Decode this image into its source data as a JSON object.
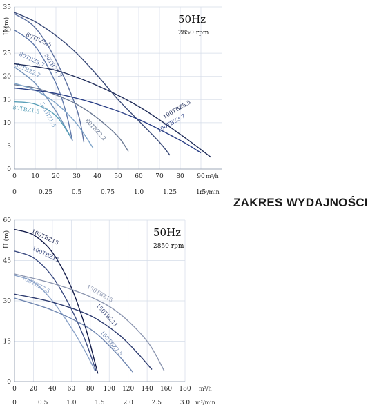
{
  "side_title": "ZAKRES WYDAJNOŚCI",
  "chart_data": [
    {
      "type": "line",
      "title": "50Hz",
      "subtitle": "2850 rpm",
      "ylabel": "H (m)",
      "xlabel": "m³/h",
      "xlabel2": "m³/min",
      "xlim": [
        0,
        100
      ],
      "ylim": [
        0,
        35
      ],
      "x_ticks": [
        0,
        10,
        20,
        30,
        40,
        50,
        60,
        70,
        80,
        90
      ],
      "y_ticks": [
        0,
        5,
        10,
        15,
        20,
        25,
        30,
        35
      ],
      "x2_ticks": [
        "0",
        "0.25",
        "0.5",
        "0.75",
        "1.0",
        "1.25",
        "1.5"
      ],
      "x2_values": [
        0,
        15,
        30,
        45,
        60,
        75,
        90
      ],
      "grid": true,
      "series": [
        {
          "name": "80TBZ5.5",
          "color": "#3a4a78",
          "x": [
            0,
            10,
            20,
            30,
            40,
            50,
            60,
            70,
            75
          ],
          "y": [
            33.8,
            31.8,
            28.8,
            25.0,
            20.2,
            15.0,
            10.4,
            5.8,
            3.0
          ]
        },
        {
          "name": "50TBZ3.7",
          "color": "#5a6e9e",
          "x": [
            0,
            10,
            20,
            30,
            33.5
          ],
          "y": [
            33.5,
            30.5,
            23.5,
            13.0,
            5.8
          ]
        },
        {
          "name": "80TBZ3.7",
          "color": "#5f78aa",
          "x": [
            0,
            10,
            20,
            25,
            28
          ],
          "y": [
            30.0,
            26.5,
            18.5,
            12.0,
            6.0
          ]
        },
        {
          "name": "50TBZ2.2",
          "color": "#6f8fb8",
          "x": [
            0,
            10,
            20,
            28
          ],
          "y": [
            22.0,
            18.5,
            12.5,
            6.2
          ]
        },
        {
          "name": "80TBZ2.2",
          "color": "#6c7a94",
          "x": [
            0,
            10,
            20,
            30,
            40,
            50,
            55
          ],
          "y": [
            18.2,
            17.5,
            16.0,
            14.0,
            11.0,
            7.0,
            3.8
          ]
        },
        {
          "name": "80TBZ1.5",
          "color": "#5aa0b8",
          "x": [
            0,
            10,
            20,
            27
          ],
          "y": [
            14.5,
            14.0,
            11.5,
            7.0
          ]
        },
        {
          "name": "50TBZ1.5",
          "color": "#7fa4c8",
          "x": [
            0,
            10,
            20,
            30,
            38
          ],
          "y": [
            18.5,
            17.0,
            14.2,
            9.8,
            4.5
          ]
        },
        {
          "name": "100TBZ5.5",
          "color": "#1e2b58",
          "x": [
            0,
            20,
            40,
            60,
            80,
            95
          ],
          "y": [
            22.7,
            21.3,
            18.0,
            13.5,
            7.5,
            2.5
          ]
        },
        {
          "name": "100TBZ3.7",
          "color": "#2a3f86",
          "x": [
            0,
            20,
            40,
            60,
            80,
            90
          ],
          "y": [
            17.5,
            16.3,
            14.0,
            10.7,
            6.2,
            3.5
          ]
        }
      ]
    },
    {
      "type": "line",
      "title": "50Hz",
      "subtitle": "2850 rpm",
      "ylabel": "H (m)",
      "xlabel": "m³/h",
      "xlabel2": "m³/min",
      "xlim": [
        0,
        180
      ],
      "ylim": [
        0,
        60
      ],
      "x_ticks": [
        0,
        20,
        40,
        60,
        80,
        100,
        120,
        140,
        160,
        180
      ],
      "y_ticks": [
        0,
        15,
        30,
        45,
        60
      ],
      "x2_ticks": [
        "0",
        "0.5",
        "1.0",
        "1.5",
        "2.0",
        "2.5",
        "3.0"
      ],
      "x2_values": [
        0,
        30,
        60,
        90,
        120,
        150,
        180
      ],
      "grid": true,
      "series": [
        {
          "name": "100TBZ15",
          "color": "#111a48",
          "x": [
            0,
            20,
            40,
            60,
            75,
            85,
            88
          ],
          "y": [
            56.5,
            54.5,
            48.0,
            35.0,
            20.0,
            7.0,
            3.0
          ]
        },
        {
          "name": "100TBZ11",
          "color": "#3a4a80",
          "x": [
            0,
            20,
            40,
            60,
            75,
            86
          ],
          "y": [
            48.5,
            46.0,
            39.0,
            27.0,
            15.0,
            4.0
          ]
        },
        {
          "name": "100TBZ7.5",
          "color": "#8aa2c8",
          "x": [
            0,
            20,
            40,
            60,
            75,
            85
          ],
          "y": [
            39.5,
            37.0,
            30.0,
            20.0,
            11.0,
            4.0
          ]
        },
        {
          "name": "150TBZ15",
          "color": "#8c96b0",
          "x": [
            0,
            40,
            80,
            110,
            140,
            158
          ],
          "y": [
            40.0,
            36.5,
            31.5,
            25.5,
            15.0,
            4.0
          ]
        },
        {
          "name": "150TBZ11",
          "color": "#2e3c70",
          "x": [
            0,
            40,
            80,
            110,
            130,
            145
          ],
          "y": [
            32.5,
            29.5,
            24.5,
            17.5,
            10.5,
            4.5
          ]
        },
        {
          "name": "150TBZ7.5",
          "color": "#6f86b0",
          "x": [
            0,
            40,
            80,
            105,
            125
          ],
          "y": [
            31.0,
            26.5,
            19.5,
            11.5,
            3.5
          ]
        }
      ]
    }
  ]
}
